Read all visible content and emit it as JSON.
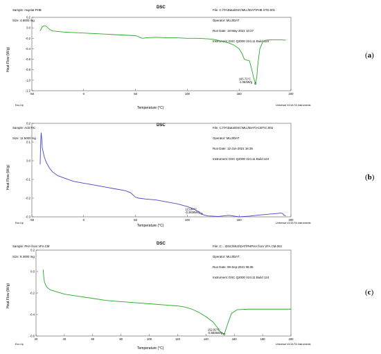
{
  "panels": [
    {
      "letter_open": "(",
      "letter": "a",
      "letter_close": ")",
      "title": "DSC",
      "header_left": [
        "Sample: mujelat PHB",
        "Size: 4.8000 mg"
      ],
      "header_right": [
        "File: C:\\TA\\Data\\DSC\\MUJ\\DAT\\PHB STD.001",
        "Operator: MUJ/DAT",
        "Run Date: 19-May-2021 10:27",
        "Instrument: DSC Q2000 V24.11 Build 124"
      ],
      "ylabel": "Heat Flow (W/g)",
      "xlabel": "Temperature (°C)",
      "exo_label": "Exo Up",
      "software_label": "Universal V4.5A TA Instruments",
      "annotation": [
        "165.72°C",
        "-1.063W/g"
      ],
      "color": "#22aa22"
    },
    {
      "letter_open": "(",
      "letter": "b",
      "letter_close": ")",
      "title": "DSC",
      "header_left": [
        "Sample: ACETIC",
        "Size: 11.5000 mg"
      ],
      "header_right": [
        "File: C:\\TA\\Data\\DSC\\MUJ\\DAT\\ACETIC.002",
        "Operator: MUJ/DAT",
        "Run Date: 12-Jun-2021 16:39",
        "Instrument: DSC Q2000 V24.11 Build 124"
      ],
      "ylabel": "Heat Flow (W/g)",
      "xlabel": "Temperature (°C)",
      "exo_label": "Exo Up",
      "software_label": "Universal V4.5A TA Instruments",
      "annotation": [
        "113.84°C",
        "-0.2838W/g"
      ],
      "color": "#4444cc"
    },
    {
      "letter_open": "(",
      "letter": "c",
      "letter_close": ")",
      "title": "DSC",
      "header_left": [
        "Sample: PHA from VFA CM",
        "Size: 9.3000 mg"
      ],
      "header_right": [
        "File: C:...\\DSC\\MUJ\\DAT\\PHPHA from VFA CM.002",
        "Operator: MUJ/DAT",
        "Run Date: 08-Sep-2021 09:35",
        "Instrument: DSC Q2000 V24.11 Build 124"
      ],
      "ylabel": "Heat Flow (W/g)",
      "xlabel": "Temperature (°C)",
      "exo_label": "Exo Up",
      "software_label": "Universal V4.5A TA Instruments",
      "annotation": [
        "152.92°C",
        "-0.5835W/g"
      ],
      "color": "#22aa22"
    }
  ],
  "chart_data": [
    {
      "type": "line",
      "xlabel": "Temperature (°C)",
      "ylabel": "Heat Flow (W/g)",
      "xlim": [
        -50,
        200
      ],
      "ylim": [
        -1.2,
        0.2
      ],
      "x_ticks": [
        -50,
        0,
        50,
        100,
        150,
        200
      ],
      "y_ticks": [
        -1.2,
        -1.0,
        -0.8,
        -0.6,
        -0.4,
        -0.2,
        0.0,
        0.2
      ],
      "peak": {
        "x": 165.72,
        "y": -1.063
      },
      "series": [
        {
          "x": [
            -42,
            -40,
            -38,
            -36,
            -33,
            -30,
            -20,
            -10,
            0,
            10,
            20,
            30,
            40,
            50,
            53,
            55,
            57,
            60,
            70,
            80,
            90,
            100,
            110,
            120,
            125,
            130,
            135,
            140,
            145,
            150,
            153,
            155,
            158,
            160,
            162,
            164,
            165.72,
            167,
            168,
            170,
            173,
            176,
            180,
            190,
            195
          ],
          "y": [
            -0.06,
            0.02,
            0.04,
            0.03,
            -0.03,
            -0.06,
            -0.08,
            -0.09,
            -0.1,
            -0.11,
            -0.12,
            -0.13,
            -0.14,
            -0.15,
            -0.17,
            -0.19,
            -0.2,
            -0.19,
            -0.18,
            -0.19,
            -0.19,
            -0.2,
            -0.2,
            -0.21,
            -0.22,
            -0.24,
            -0.26,
            -0.29,
            -0.33,
            -0.4,
            -0.5,
            -0.6,
            -0.62,
            -0.63,
            -0.78,
            -0.95,
            -1.063,
            -0.95,
            -0.7,
            -0.4,
            -0.26,
            -0.235,
            -0.23,
            -0.23,
            -0.235
          ]
        }
      ]
    },
    {
      "type": "line",
      "xlabel": "Temperature (°C)",
      "ylabel": "Heat Flow (W/g)",
      "xlim": [
        -50,
        200
      ],
      "ylim": [
        -0.3,
        0.2
      ],
      "x_ticks": [
        -50,
        0,
        50,
        100,
        150,
        200
      ],
      "y_ticks": [
        -0.3,
        -0.2,
        -0.1,
        0.0,
        0.1,
        0.2
      ],
      "peak": {
        "x": 113.84,
        "y": -0.2838
      },
      "series": [
        {
          "x": [
            -42,
            -41.5,
            -41,
            -40.5,
            -40,
            -38,
            -36,
            -33,
            -30,
            -25,
            -20,
            -10,
            0,
            10,
            20,
            30,
            40,
            45,
            48,
            50,
            53,
            60,
            70,
            80,
            90,
            100,
            105,
            110,
            113.84,
            116,
            120,
            130,
            140,
            150,
            160,
            170,
            180,
            185,
            190,
            192,
            193,
            195
          ],
          "y": [
            -0.02,
            0.1,
            0.15,
            0.12,
            0.07,
            0.02,
            -0.01,
            -0.04,
            -0.06,
            -0.08,
            -0.09,
            -0.11,
            -0.12,
            -0.13,
            -0.14,
            -0.15,
            -0.16,
            -0.17,
            -0.185,
            -0.195,
            -0.2,
            -0.205,
            -0.21,
            -0.22,
            -0.23,
            -0.245,
            -0.255,
            -0.27,
            -0.2838,
            -0.29,
            -0.295,
            -0.298,
            -0.292,
            -0.3,
            -0.296,
            -0.29,
            -0.285,
            -0.283,
            -0.28,
            -0.282,
            -0.29,
            -0.295
          ]
        }
      ]
    },
    {
      "type": "line",
      "xlabel": "Temperature (°C)",
      "ylabel": "Heat Flow (W/g)",
      "xlim": [
        20,
        200
      ],
      "ylim": [
        -0.6,
        0.2
      ],
      "x_ticks": [
        20,
        40,
        60,
        80,
        100,
        120,
        140,
        160,
        180,
        200
      ],
      "y_ticks": [
        -0.6,
        -0.4,
        -0.2,
        0.0,
        0.2
      ],
      "peak": {
        "x": 152.92,
        "y": -0.5835
      },
      "series": [
        {
          "x": [
            25,
            25.5,
            26,
            27,
            28,
            30,
            35,
            40,
            50,
            60,
            70,
            80,
            90,
            100,
            110,
            120,
            125,
            130,
            135,
            140,
            145,
            148,
            150,
            152.92,
            155,
            158,
            162,
            170,
            180,
            190,
            200
          ],
          "y": [
            0.02,
            -0.05,
            -0.1,
            -0.13,
            -0.15,
            -0.17,
            -0.19,
            -0.21,
            -0.23,
            -0.25,
            -0.27,
            -0.28,
            -0.29,
            -0.3,
            -0.31,
            -0.32,
            -0.33,
            -0.35,
            -0.38,
            -0.42,
            -0.47,
            -0.52,
            -0.56,
            -0.5835,
            -0.5,
            -0.39,
            -0.355,
            -0.35,
            -0.35,
            -0.35,
            -0.35
          ]
        }
      ]
    }
  ]
}
